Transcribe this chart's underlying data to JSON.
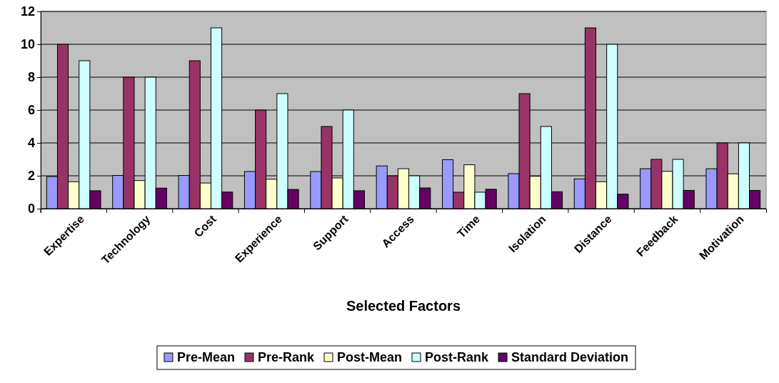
{
  "chart_data": {
    "type": "bar",
    "xlabel": "Selected Factors",
    "categories": [
      "Expertise",
      "Technology",
      "Cost",
      "Experience",
      "Support",
      "Access",
      "Time",
      "Isolation",
      "Distance",
      "Feedback",
      "Motivation"
    ],
    "series": [
      {
        "name": "Pre-Mean",
        "color": "#9999ff",
        "values": [
          1.95,
          2.02,
          2.02,
          2.26,
          2.26,
          2.6,
          2.98,
          2.13,
          1.81,
          2.43,
          2.43
        ]
      },
      {
        "name": "Pre-Rank",
        "color": "#993366",
        "values": [
          10,
          8,
          9,
          6,
          5,
          2,
          1,
          7,
          11,
          3,
          4
        ]
      },
      {
        "name": "Post-Mean",
        "color": "#ffffcc",
        "values": [
          1.64,
          1.71,
          1.56,
          1.79,
          1.87,
          2.43,
          2.67,
          1.97,
          1.64,
          2.27,
          2.12
        ]
      },
      {
        "name": "Post-Rank",
        "color": "#ccffff",
        "values": [
          9,
          8,
          11,
          7,
          6,
          2,
          1,
          5,
          10,
          3,
          4
        ]
      },
      {
        "name": "Standard Deviation",
        "color": "#660066",
        "values": [
          1.09,
          1.25,
          1.01,
          1.17,
          1.09,
          1.26,
          1.18,
          1.03,
          0.88,
          1.11,
          1.11
        ]
      }
    ],
    "ylim": [
      0,
      12
    ],
    "yticks": [
      0,
      2,
      4,
      6,
      8,
      10,
      12
    ],
    "grid": "y",
    "legend": "bottom"
  }
}
